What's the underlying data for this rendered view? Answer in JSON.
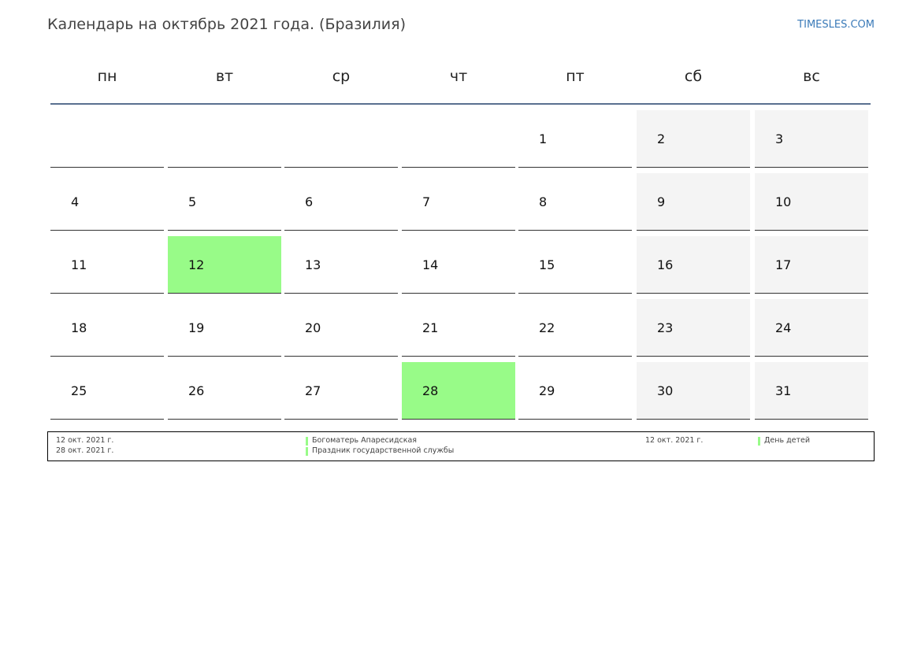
{
  "header": {
    "title": "Календарь на октябрь 2021 года. (Бразилия)",
    "site": "TIMESLES.COM"
  },
  "holiday_color": "#98fb88",
  "calendar": {
    "weekdays": [
      "пн",
      "вт",
      "ср",
      "чт",
      "пт",
      "сб",
      "вс"
    ],
    "weeks": [
      [
        null,
        null,
        null,
        null,
        {
          "day": 1
        },
        {
          "day": 2
        },
        {
          "day": 3
        }
      ],
      [
        {
          "day": 4
        },
        {
          "day": 5
        },
        {
          "day": 6
        },
        {
          "day": 7
        },
        {
          "day": 8
        },
        {
          "day": 9
        },
        {
          "day": 10
        }
      ],
      [
        {
          "day": 11
        },
        {
          "day": 12,
          "holiday": true
        },
        {
          "day": 13
        },
        {
          "day": 14
        },
        {
          "day": 15
        },
        {
          "day": 16
        },
        {
          "day": 17
        }
      ],
      [
        {
          "day": 18
        },
        {
          "day": 19
        },
        {
          "day": 20
        },
        {
          "day": 21
        },
        {
          "day": 22
        },
        {
          "day": 23
        },
        {
          "day": 24
        }
      ],
      [
        {
          "day": 25
        },
        {
          "day": 26
        },
        {
          "day": 27
        },
        {
          "day": 28,
          "holiday": true
        },
        {
          "day": 29
        },
        {
          "day": 30
        },
        {
          "day": 31
        }
      ]
    ]
  },
  "legend": [
    [
      {
        "date": "12 окт. 2021 г.",
        "name": "Богоматерь Апаресидская"
      },
      {
        "date": "28 окт. 2021 г.",
        "name": "Праздник государственной службы"
      }
    ],
    [
      {
        "date": "12 окт. 2021 г.",
        "name": "День детей"
      }
    ]
  ]
}
